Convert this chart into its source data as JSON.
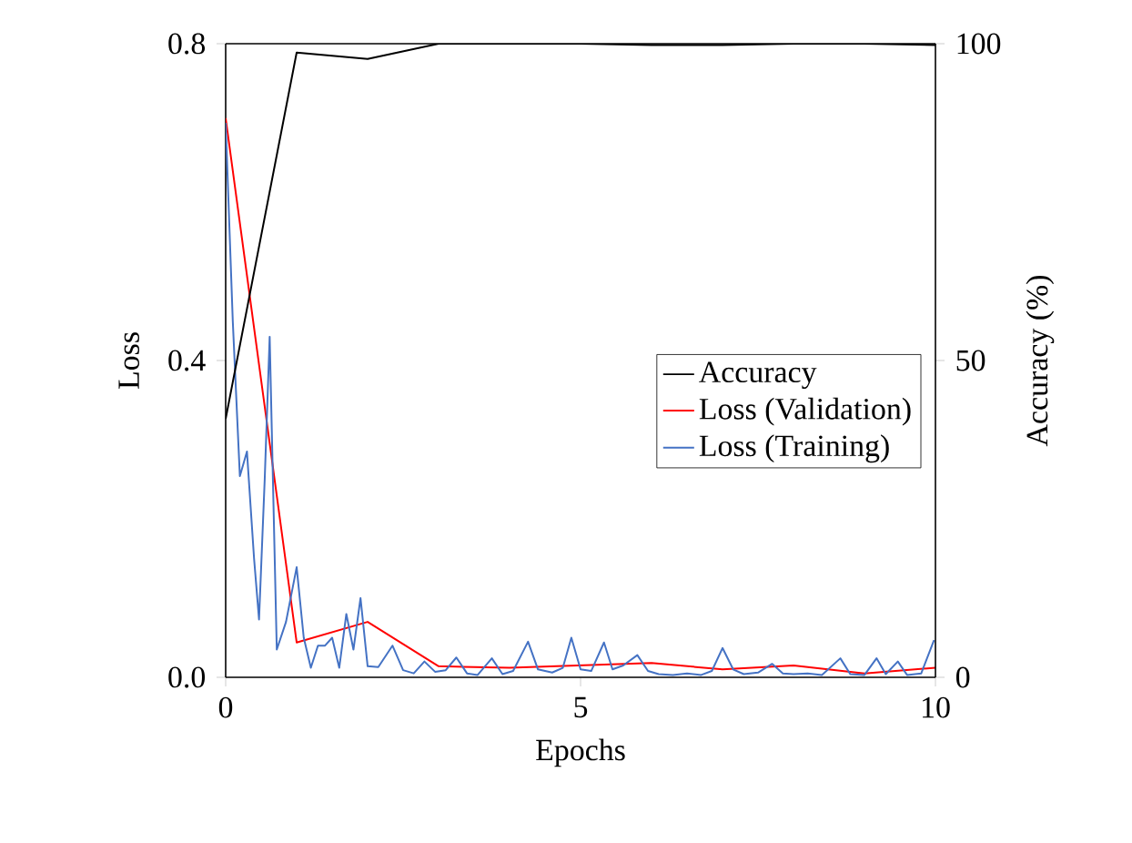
{
  "chart_data": {
    "type": "line",
    "xlabel": "Epochs",
    "ylabel": "Loss",
    "y2label": "Accuracy (%)",
    "xlim": [
      0,
      10
    ],
    "xticks": [
      0,
      5,
      10
    ],
    "ylim": [
      0,
      0.8
    ],
    "yticks": [
      {
        "value": 0,
        "label": "0.0"
      },
      {
        "value": 0.4,
        "label": "0.4"
      },
      {
        "value": 0.8,
        "label": "0.8"
      }
    ],
    "y2lim": [
      0,
      100
    ],
    "y2ticks": [
      0,
      50,
      100
    ],
    "legend": "right",
    "marker": "none",
    "line_style": "solid",
    "series": [
      {
        "name": "Accuracy",
        "color": "#000000",
        "axis": "y2",
        "x": [
          0,
          1,
          2,
          3,
          4,
          5,
          6,
          7,
          8,
          9,
          10
        ],
        "values": [
          40.8,
          98.6,
          97.6,
          100,
          100,
          100,
          99.8,
          99.8,
          100,
          100,
          99.8
        ]
      },
      {
        "name": "Loss (Validation)",
        "color": "#ff0000",
        "x": [
          0,
          1,
          2,
          3,
          4,
          5,
          6,
          7,
          8,
          9,
          10
        ],
        "values": [
          0.706,
          0.044,
          0.07,
          0.014,
          0.012,
          0.015,
          0.018,
          0.01,
          0.015,
          0.005,
          0.012
        ]
      },
      {
        "name": "Loss (Training)",
        "color": "#4472c4",
        "x": [
          0,
          0.1,
          0.2,
          0.3,
          0.4,
          0.47,
          0.55,
          0.62,
          0.72,
          0.85,
          1.0,
          1.1,
          1.2,
          1.3,
          1.4,
          1.5,
          1.6,
          1.7,
          1.8,
          1.9,
          2.0,
          2.15,
          2.35,
          2.5,
          2.65,
          2.8,
          2.95,
          3.1,
          3.25,
          3.4,
          3.55,
          3.75,
          3.9,
          4.05,
          4.26,
          4.4,
          4.6,
          4.75,
          4.87,
          5.0,
          5.15,
          5.33,
          5.45,
          5.6,
          5.8,
          5.95,
          6.1,
          6.3,
          6.5,
          6.7,
          6.85,
          7.0,
          7.15,
          7.3,
          7.5,
          7.7,
          7.85,
          8.0,
          8.2,
          8.4,
          8.66,
          8.8,
          9.0,
          9.17,
          9.3,
          9.47,
          9.6,
          9.8,
          9.98
        ],
        "values": [
          0.7,
          0.45,
          0.254,
          0.285,
          0.15,
          0.073,
          0.25,
          0.43,
          0.035,
          0.07,
          0.139,
          0.05,
          0.012,
          0.04,
          0.04,
          0.05,
          0.012,
          0.08,
          0.035,
          0.1,
          0.014,
          0.013,
          0.04,
          0.009,
          0.005,
          0.02,
          0.007,
          0.009,
          0.025,
          0.005,
          0.003,
          0.024,
          0.004,
          0.008,
          0.045,
          0.01,
          0.006,
          0.012,
          0.05,
          0.01,
          0.008,
          0.044,
          0.01,
          0.015,
          0.028,
          0.008,
          0.004,
          0.003,
          0.005,
          0.003,
          0.008,
          0.037,
          0.01,
          0.004,
          0.006,
          0.017,
          0.005,
          0.004,
          0.005,
          0.003,
          0.024,
          0.004,
          0.003,
          0.024,
          0.004,
          0.02,
          0.003,
          0.005,
          0.047
        ]
      }
    ]
  }
}
